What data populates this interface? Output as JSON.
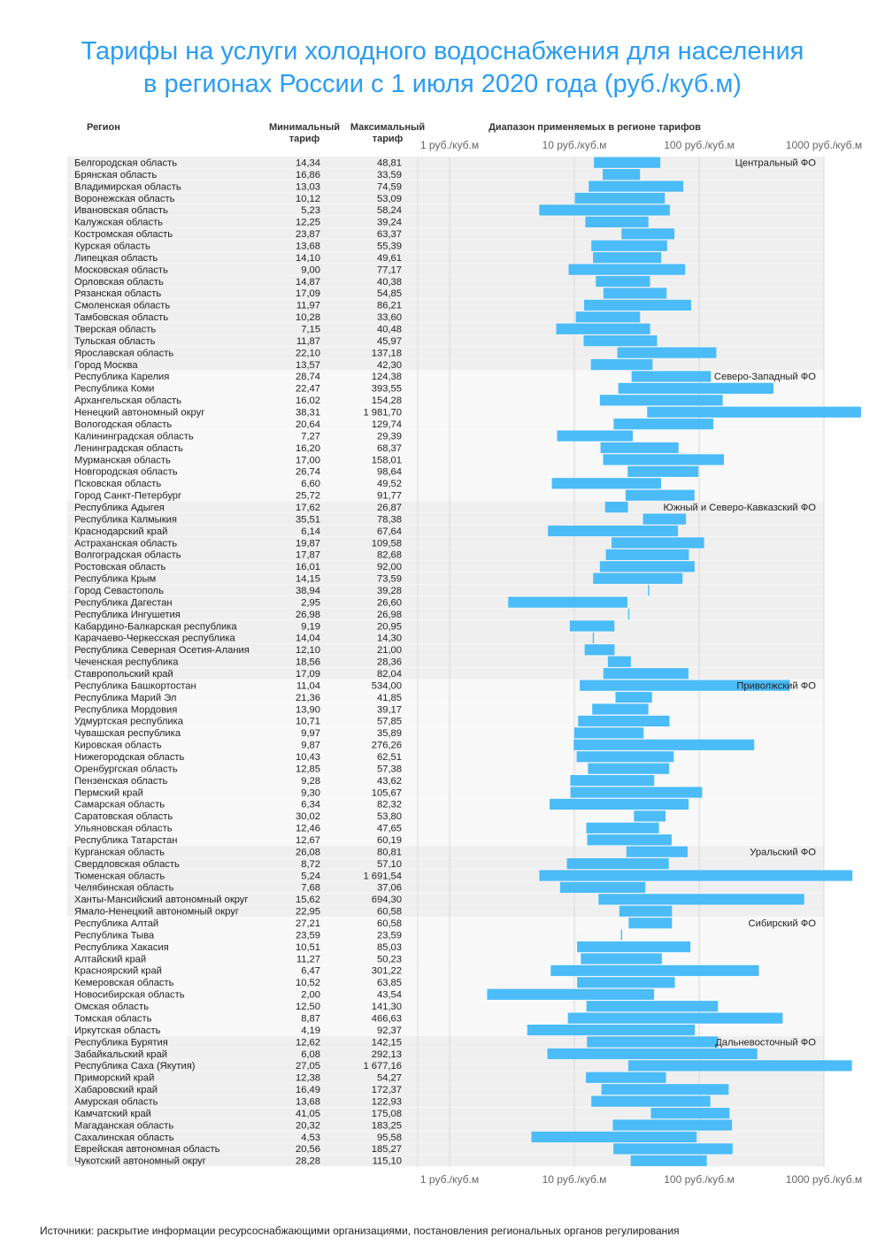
{
  "title_line1": "Тарифы на услуги холодного водоснабжения для населения",
  "title_line2": "в регионах России с 1 июля 2020 года (руб./куб.м)",
  "headers": {
    "region": "Регион",
    "min_line1": "Минимальный",
    "min_line2": "тариф",
    "max_line1": "Максимальный",
    "max_line2": "тариф",
    "range": "Диапазон применяемых в регионе тарифов"
  },
  "source": "Источники: раскрытие информации ресурсоснабжающими организациями, постановления региональных органов регулирования",
  "colors": {
    "bar": "#4bbcf7",
    "title": "#2a9df4",
    "stripe": "#efefef",
    "stripe_alt": "#f8f8f8"
  },
  "chart_data": {
    "type": "bar",
    "orientation": "horizontal range (min to max)",
    "x_scale": "log",
    "xlim": [
      1,
      1000
    ],
    "x_ticks": [
      1,
      10,
      100,
      1000
    ],
    "x_tick_labels": [
      "1 руб./куб.м",
      "10 руб./куб.м",
      "100 руб./куб.м",
      "1000 руб./куб.м"
    ],
    "groups": [
      {
        "name": "Центральный ФО",
        "rows": [
          {
            "region": "Белгородская область",
            "min": "14,34",
            "max": "48,81"
          },
          {
            "region": "Брянская область",
            "min": "16,86",
            "max": "33,59"
          },
          {
            "region": "Владимирская область",
            "min": "13,03",
            "max": "74,59"
          },
          {
            "region": "Воронежская область",
            "min": "10,12",
            "max": "53,09"
          },
          {
            "region": "Ивановская область",
            "min": "5,23",
            "max": "58,24"
          },
          {
            "region": "Калужская область",
            "min": "12,25",
            "max": "39,24"
          },
          {
            "region": "Костромская область",
            "min": "23,87",
            "max": "63,37"
          },
          {
            "region": "Курская область",
            "min": "13,68",
            "max": "55,39"
          },
          {
            "region": "Липецкая область",
            "min": "14,10",
            "max": "49,61"
          },
          {
            "region": "Московская область",
            "min": "9,00",
            "max": "77,17"
          },
          {
            "region": "Орловская область",
            "min": "14,87",
            "max": "40,38"
          },
          {
            "region": "Рязанская область",
            "min": "17,09",
            "max": "54,85"
          },
          {
            "region": "Смоленская область",
            "min": "11,97",
            "max": "86,21"
          },
          {
            "region": "Тамбовская область",
            "min": "10,28",
            "max": "33,60"
          },
          {
            "region": "Тверская область",
            "min": "7,15",
            "max": "40,48"
          },
          {
            "region": "Тульская область",
            "min": "11,87",
            "max": "45,97"
          },
          {
            "region": "Ярославская область",
            "min": "22,10",
            "max": "137,18"
          },
          {
            "region": "Город Москва",
            "min": "13,57",
            "max": "42,30"
          }
        ]
      },
      {
        "name": "Северо-Западный ФО",
        "rows": [
          {
            "region": "Республика Карелия",
            "min": "28,74",
            "max": "124,38"
          },
          {
            "region": "Республика Коми",
            "min": "22,47",
            "max": "393,55"
          },
          {
            "region": "Архангельская область",
            "min": "16,02",
            "max": "154,28"
          },
          {
            "region": "Ненецкий автономный округ",
            "min": "38,31",
            "max": "1 981,70"
          },
          {
            "region": "Вологодская область",
            "min": "20,64",
            "max": "129,74"
          },
          {
            "region": "Калининградская область",
            "min": "7,27",
            "max": "29,39"
          },
          {
            "region": "Ленинградская область",
            "min": "16,20",
            "max": "68,37"
          },
          {
            "region": "Мурманская область",
            "min": "17,00",
            "max": "158,01"
          },
          {
            "region": "Новгородская область",
            "min": "26,74",
            "max": "98,64"
          },
          {
            "region": "Псковская область",
            "min": "6,60",
            "max": "49,52"
          },
          {
            "region": "Город Санкт-Петербург",
            "min": "25,72",
            "max": "91,77"
          }
        ]
      },
      {
        "name": "Южный и Северо-Кавказский ФО",
        "rows": [
          {
            "region": "Республика Адыгея",
            "min": "17,62",
            "max": "26,87"
          },
          {
            "region": "Республика Калмыкия",
            "min": "35,51",
            "max": "78,38"
          },
          {
            "region": "Краснодарский край",
            "min": "6,14",
            "max": "67,64"
          },
          {
            "region": "Астраханская область",
            "min": "19,87",
            "max": "109,58"
          },
          {
            "region": "Волгоградская область",
            "min": "17,87",
            "max": "82,68"
          },
          {
            "region": "Ростовская область",
            "min": "16,01",
            "max": "92,00"
          },
          {
            "region": "Республика Крым",
            "min": "14,15",
            "max": "73,59"
          },
          {
            "region": "Город Севастополь",
            "min": "38,94",
            "max": "39,28"
          },
          {
            "region": "Республика Дагестан",
            "min": "2,95",
            "max": "26,60"
          },
          {
            "region": "Республика Ингушетия",
            "min": "26,98",
            "max": "26,98"
          },
          {
            "region": "Кабардино-Балкарская республика",
            "min": "9,19",
            "max": "20,95"
          },
          {
            "region": "Карачаево-Черкесская республика",
            "min": "14,04",
            "max": "14,30"
          },
          {
            "region": "Республика Северная Осетия-Алания",
            "min": "12,10",
            "max": "21,00"
          },
          {
            "region": "Чеченская республика",
            "min": "18,56",
            "max": "28,36"
          },
          {
            "region": "Ставропольский край",
            "min": "17,09",
            "max": "82,04"
          }
        ]
      },
      {
        "name": "Приволжский ФО",
        "rows": [
          {
            "region": "Республика Башкортостан",
            "min": "11,04",
            "max": "534,00"
          },
          {
            "region": "Республика Марий Эл",
            "min": "21,36",
            "max": "41,85"
          },
          {
            "region": "Республика Мордовия",
            "min": "13,90",
            "max": "39,17"
          },
          {
            "region": "Удмуртская республика",
            "min": "10,71",
            "max": "57,85"
          },
          {
            "region": "Чувашская республика",
            "min": "9,97",
            "max": "35,89"
          },
          {
            "region": "Кировская область",
            "min": "9,87",
            "max": "276,26"
          },
          {
            "region": "Нижегородская область",
            "min": "10,43",
            "max": "62,51"
          },
          {
            "region": "Оренбургская область",
            "min": "12,85",
            "max": "57,38"
          },
          {
            "region": "Пензенская область",
            "min": "9,28",
            "max": "43,62"
          },
          {
            "region": "Пермский край",
            "min": "9,30",
            "max": "105,67"
          },
          {
            "region": "Самарская область",
            "min": "6,34",
            "max": "82,32"
          },
          {
            "region": "Саратовская область",
            "min": "30,02",
            "max": "53,80"
          },
          {
            "region": "Ульяновская область",
            "min": "12,46",
            "max": "47,65"
          },
          {
            "region": "Республика Татарстан",
            "min": "12,67",
            "max": "60,19"
          }
        ]
      },
      {
        "name": "Уральский ФО",
        "rows": [
          {
            "region": "Курганская область",
            "min": "26,08",
            "max": "80,81"
          },
          {
            "region": "Свердловская область",
            "min": "8,72",
            "max": "57,10"
          },
          {
            "region": "Тюменская область",
            "min": "5,24",
            "max": "1 691,54"
          },
          {
            "region": "Челябинская область",
            "min": "7,68",
            "max": "37,06"
          },
          {
            "region": "Ханты-Мансийский автономный округ",
            "min": "15,62",
            "max": "694,30"
          },
          {
            "region": "Ямало-Ненецкий автономный округ",
            "min": "22,95",
            "max": "60,58"
          }
        ]
      },
      {
        "name": "Сибирский ФО",
        "rows": [
          {
            "region": "Республика Алтай",
            "min": "27,21",
            "max": "60,58"
          },
          {
            "region": "Республика Тыва",
            "min": "23,59",
            "max": "23,59"
          },
          {
            "region": "Республика Хакасия",
            "min": "10,51",
            "max": "85,03"
          },
          {
            "region": "Алтайский край",
            "min": "11,27",
            "max": "50,23"
          },
          {
            "region": "Красноярский край",
            "min": "6,47",
            "max": "301,22"
          },
          {
            "region": "Кемеровская область",
            "min": "10,52",
            "max": "63,85"
          },
          {
            "region": "Новосибирская область",
            "min": "2,00",
            "max": "43,54"
          },
          {
            "region": "Омская область",
            "min": "12,50",
            "max": "141,30"
          },
          {
            "region": "Томская область",
            "min": "8,87",
            "max": "466,63"
          },
          {
            "region": "Иркутская область",
            "min": "4,19",
            "max": "92,37"
          }
        ]
      },
      {
        "name": "Дальневосточный ФО",
        "rows": [
          {
            "region": "Республика Бурятия",
            "min": "12,62",
            "max": "142,15"
          },
          {
            "region": "Забайкальский край",
            "min": "6,08",
            "max": "292,13"
          },
          {
            "region": "Республика Саха (Якутия)",
            "min": "27,05",
            "max": "1 677,16"
          },
          {
            "region": "Приморский край",
            "min": "12,38",
            "max": "54,27"
          },
          {
            "region": "Хабаровский край",
            "min": "16,49",
            "max": "172,37"
          },
          {
            "region": "Амурская область",
            "min": "13,68",
            "max": "122,93"
          },
          {
            "region": "Камчатский край",
            "min": "41,05",
            "max": "175,08"
          },
          {
            "region": "Магаданская область",
            "min": "20,32",
            "max": "183,25"
          },
          {
            "region": "Сахалинская область",
            "min": "4,53",
            "max": "95,58"
          },
          {
            "region": "Еврейская автономная область",
            "min": "20,56",
            "max": "185,27"
          },
          {
            "region": "Чукотский автономный округ",
            "min": "28,28",
            "max": "115,10"
          }
        ]
      }
    ]
  }
}
